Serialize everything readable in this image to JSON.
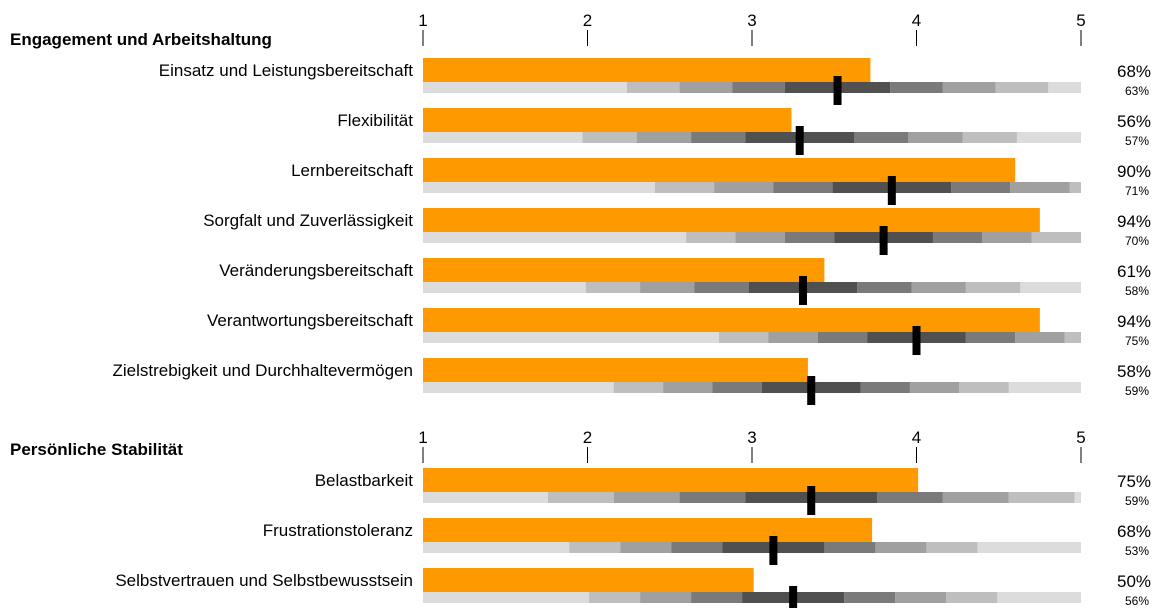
{
  "chart_data": {
    "type": "bar",
    "axis": {
      "min": 1,
      "max": 5,
      "ticks": [
        "1",
        "2",
        "3",
        "4",
        "5"
      ]
    },
    "colors": {
      "bar": "#FF9900",
      "marker": "#000000",
      "band_light": "#DCDCDC",
      "band_1": "#BEBEBE",
      "band_2": "#A0A0A0",
      "band_3": "#7A7A7A",
      "band_4": "#505050",
      "tick": "#000000"
    },
    "sections": [
      {
        "title": "Engagement und Arbeitshaltung",
        "items": [
          {
            "label": "Einsatz und Leistungsbereitschaft",
            "value": 3.72,
            "marker": 3.52,
            "spread": 0.32,
            "pct": "68%",
            "pct_ref": "63%"
          },
          {
            "label": "Flexibilität",
            "value": 3.24,
            "marker": 3.29,
            "spread": 0.33,
            "pct": "56%",
            "pct_ref": "57%"
          },
          {
            "label": "Lernbereitschaft",
            "value": 4.6,
            "marker": 3.85,
            "spread": 0.36,
            "pct": "90%",
            "pct_ref": "71%"
          },
          {
            "label": "Sorgfalt und Zuverlässigkeit",
            "value": 4.75,
            "marker": 3.8,
            "spread": 0.3,
            "pct": "94%",
            "pct_ref": "70%"
          },
          {
            "label": "Veränderungsbereitschaft",
            "value": 3.44,
            "marker": 3.31,
            "spread": 0.33,
            "pct": "61%",
            "pct_ref": "58%"
          },
          {
            "label": "Verantwortungsbereitschaft",
            "value": 4.75,
            "marker": 4.0,
            "spread": 0.3,
            "pct": "94%",
            "pct_ref": "75%"
          },
          {
            "label": "Zielstrebigkeit und Durchhaltevermögen",
            "value": 3.34,
            "marker": 3.36,
            "spread": 0.3,
            "pct": "58%",
            "pct_ref": "59%"
          }
        ]
      },
      {
        "title": "Persönliche Stabilität",
        "items": [
          {
            "label": "Belastbarkeit",
            "value": 4.01,
            "marker": 3.36,
            "spread": 0.4,
            "pct": "75%",
            "pct_ref": "59%"
          },
          {
            "label": "Frustrationstoleranz",
            "value": 3.73,
            "marker": 3.13,
            "spread": 0.31,
            "pct": "68%",
            "pct_ref": "53%"
          },
          {
            "label": "Selbstvertrauen und Selbstbewusstsein",
            "value": 3.01,
            "marker": 3.25,
            "spread": 0.31,
            "pct": "50%",
            "pct_ref": "56%"
          }
        ]
      }
    ]
  }
}
